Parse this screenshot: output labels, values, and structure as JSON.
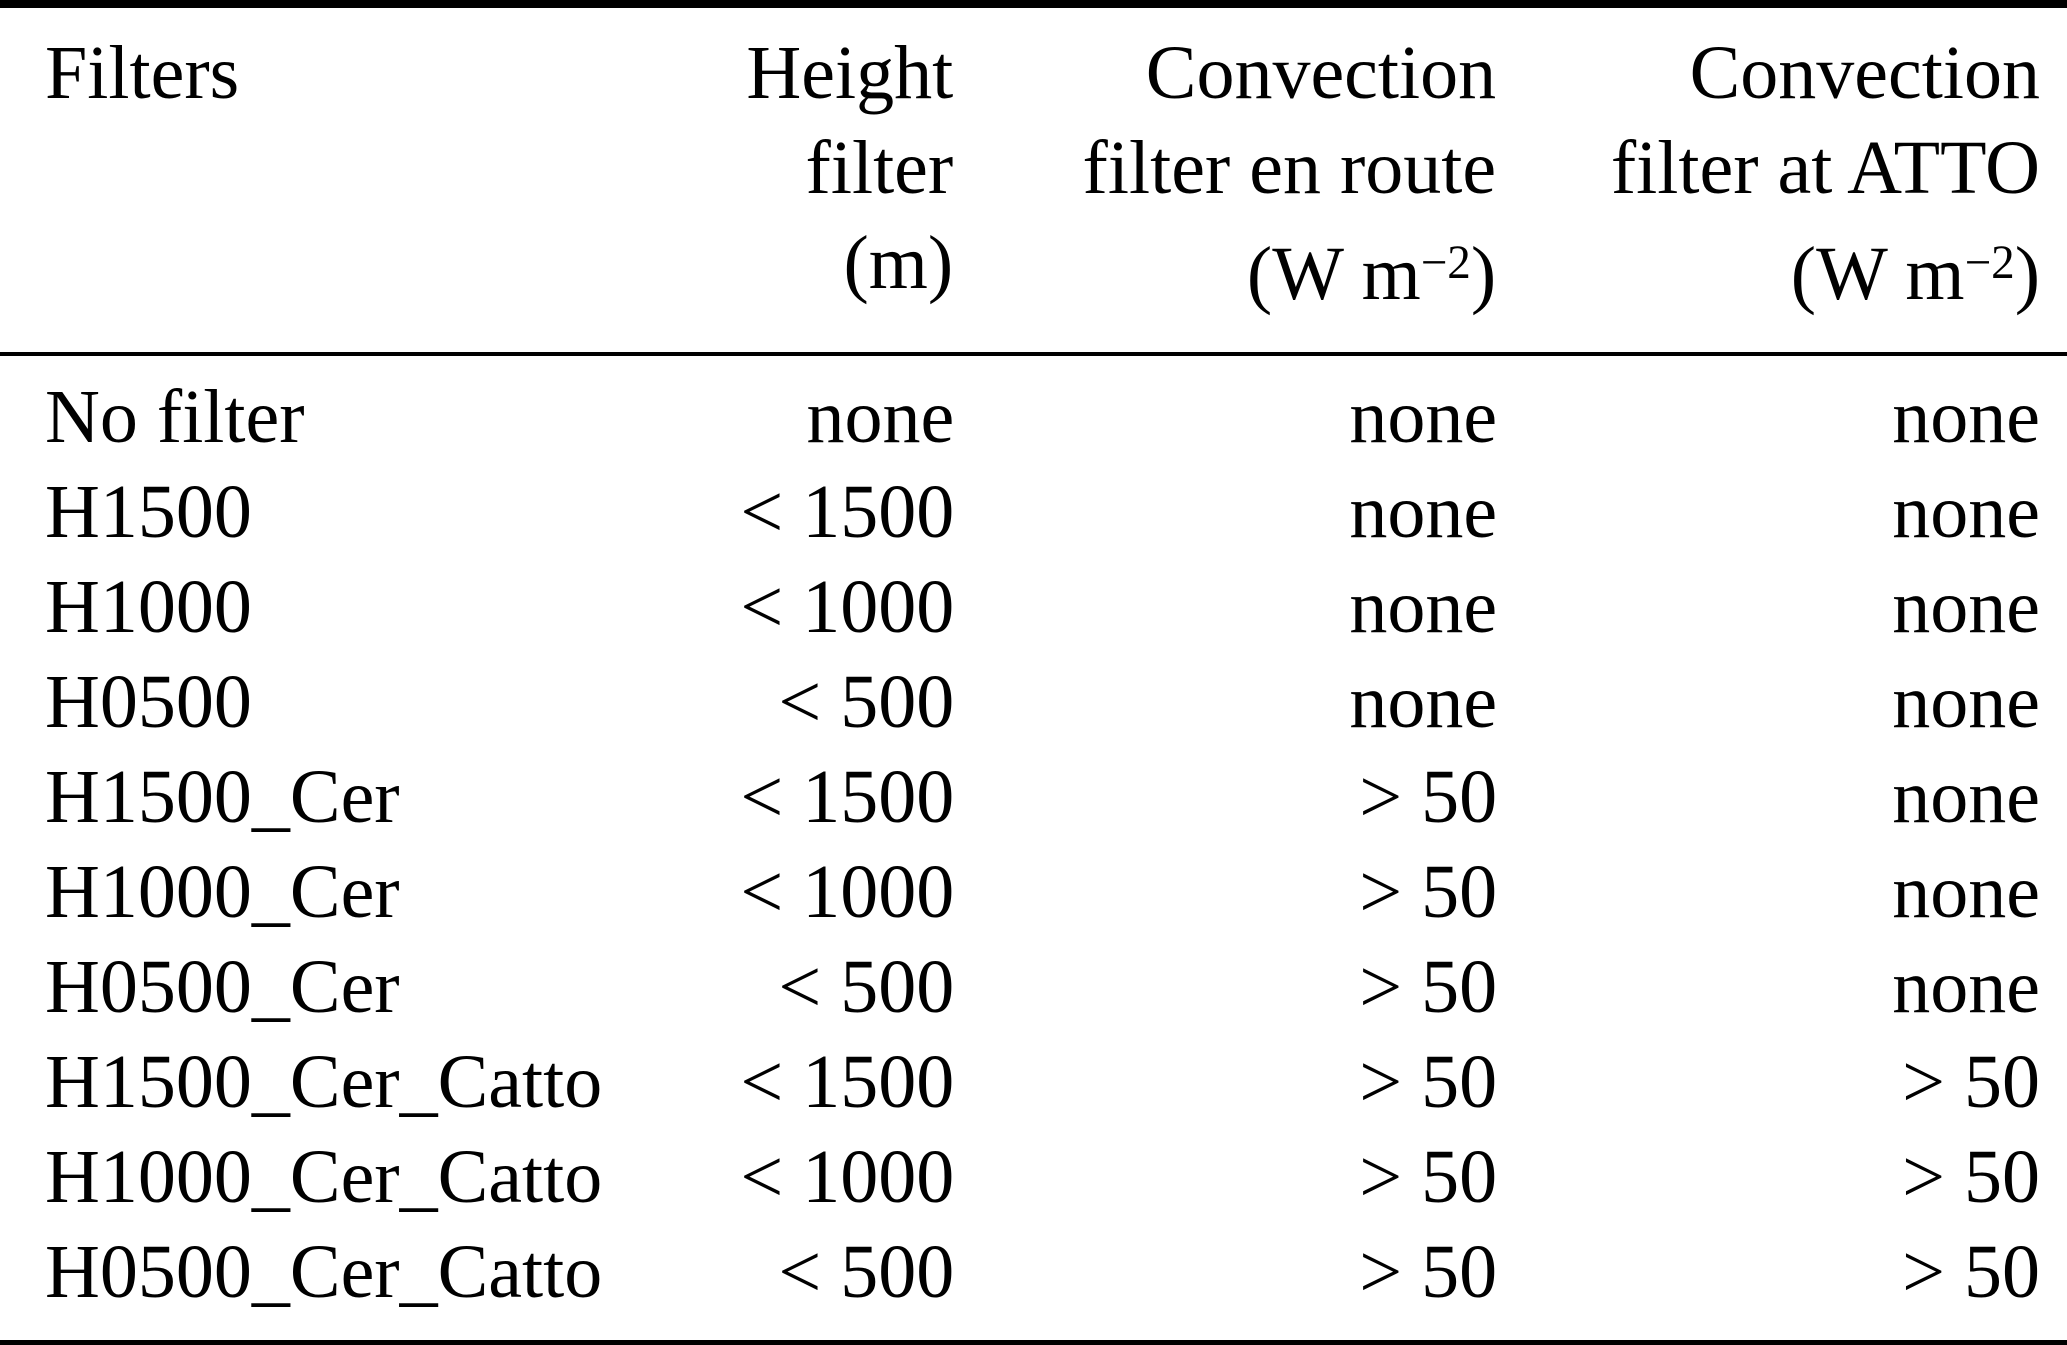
{
  "table": {
    "header": {
      "filters": "Filters",
      "height": {
        "line1": "Height",
        "line2": "filter",
        "unit": "(m)"
      },
      "conv_route": {
        "line1": "Convection",
        "line2": "filter en route",
        "unit_pre": "(W m",
        "unit_sup": "−2",
        "unit_post": ")"
      },
      "conv_atto": {
        "line1": "Convection",
        "line2": "filter at ATTO",
        "unit_pre": "(W m",
        "unit_sup": "−2",
        "unit_post": ")"
      }
    },
    "rows": [
      {
        "filter": "No filter",
        "height": "none",
        "conv_route": "none",
        "conv_atto": "none"
      },
      {
        "filter": "H1500",
        "height": "< 1500",
        "conv_route": "none",
        "conv_atto": "none"
      },
      {
        "filter": "H1000",
        "height": "< 1000",
        "conv_route": "none",
        "conv_atto": "none"
      },
      {
        "filter": "H0500",
        "height": "< 500",
        "conv_route": "none",
        "conv_atto": "none"
      },
      {
        "filter": "H1500_Cer",
        "height": "< 1500",
        "conv_route": "> 50",
        "conv_atto": "none"
      },
      {
        "filter": "H1000_Cer",
        "height": "< 1000",
        "conv_route": "> 50",
        "conv_atto": "none"
      },
      {
        "filter": "H0500_Cer",
        "height": "< 500",
        "conv_route": "> 50",
        "conv_atto": "none"
      },
      {
        "filter": "H1500_Cer_Catto",
        "height": "< 1500",
        "conv_route": "> 50",
        "conv_atto": "> 50"
      },
      {
        "filter": "H1000_Cer_Catto",
        "height": "< 1000",
        "conv_route": "> 50",
        "conv_atto": "> 50"
      },
      {
        "filter": "H0500_Cer_Catto",
        "height": "< 500",
        "conv_route": "> 50",
        "conv_atto": "> 50"
      }
    ],
    "colors": {
      "rule": "#000000",
      "text": "#000000",
      "background": "#ffffff"
    }
  }
}
